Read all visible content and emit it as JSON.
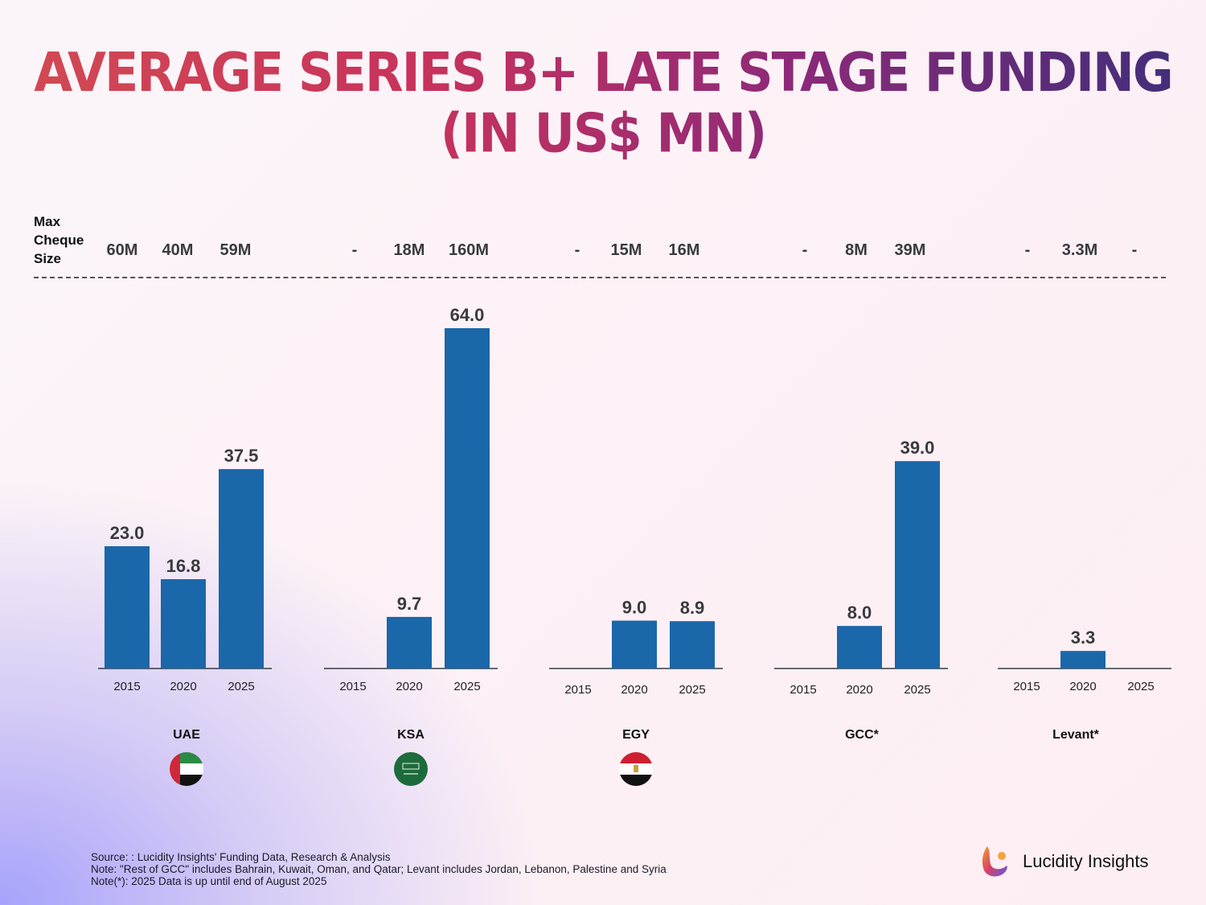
{
  "title": {
    "line1": "AVERAGE SERIES B+ LATE STAGE FUNDING",
    "line2": "(IN US$ MN)"
  },
  "cheque": {
    "label_lines": [
      "Max",
      "Cheque",
      "Size"
    ],
    "values": [
      [
        "60M",
        "40M",
        "59M"
      ],
      [
        "-",
        "18M",
        "160M"
      ],
      [
        "-",
        "15M",
        "16M"
      ],
      [
        "-",
        "8M",
        "39M"
      ],
      [
        "-",
        "3.3M",
        "-"
      ]
    ]
  },
  "regions": [
    {
      "name": "UAE",
      "flag": "uae-flag-icon"
    },
    {
      "name": "KSA",
      "flag": "saudi-flag-icon"
    },
    {
      "name": "EGY",
      "flag": "egypt-flag-icon"
    },
    {
      "name": "GCC*",
      "flag": null
    },
    {
      "name": "Levant*",
      "flag": null
    }
  ],
  "chart_data": {
    "type": "bar",
    "title": "Average Series B+ Late Stage Funding (in US$ Mn)",
    "xlabel": "",
    "ylabel": "",
    "categories": [
      "2015",
      "2020",
      "2025"
    ],
    "groups": [
      "UAE",
      "KSA",
      "EGY",
      "GCC*",
      "Levant*"
    ],
    "series": [
      {
        "name": "UAE",
        "values": [
          23.0,
          16.8,
          37.5
        ],
        "labels": [
          "23.0",
          "16.8",
          "37.5"
        ]
      },
      {
        "name": "KSA",
        "values": [
          null,
          9.7,
          64.0
        ],
        "labels": [
          null,
          "9.7",
          "64.0"
        ]
      },
      {
        "name": "EGY",
        "values": [
          null,
          9.0,
          8.9
        ],
        "labels": [
          null,
          "9.0",
          "8.9"
        ]
      },
      {
        "name": "GCC*",
        "values": [
          null,
          8.0,
          39.0
        ],
        "labels": [
          null,
          "8.0",
          "39.0"
        ]
      },
      {
        "name": "Levant*",
        "values": [
          null,
          3.3,
          null
        ],
        "labels": [
          null,
          "3.3",
          null
        ]
      }
    ],
    "ylim": [
      0,
      64
    ],
    "grid": false,
    "bar_color": "#1a67a9"
  },
  "footer": {
    "source": "Source: : Lucidity Insights' Funding Data, Research & Analysis",
    "note1": "Note: \"Rest of GCC\" includes Bahrain, Kuwait, Oman, and Qatar; Levant includes Jordan, Lebanon, Palestine and Syria",
    "note2": "Note(*): 2025 Data is up until end of August 2025"
  },
  "brand": {
    "name": "Lucidity Insights",
    "logo": "lucidity-logo-icon"
  }
}
